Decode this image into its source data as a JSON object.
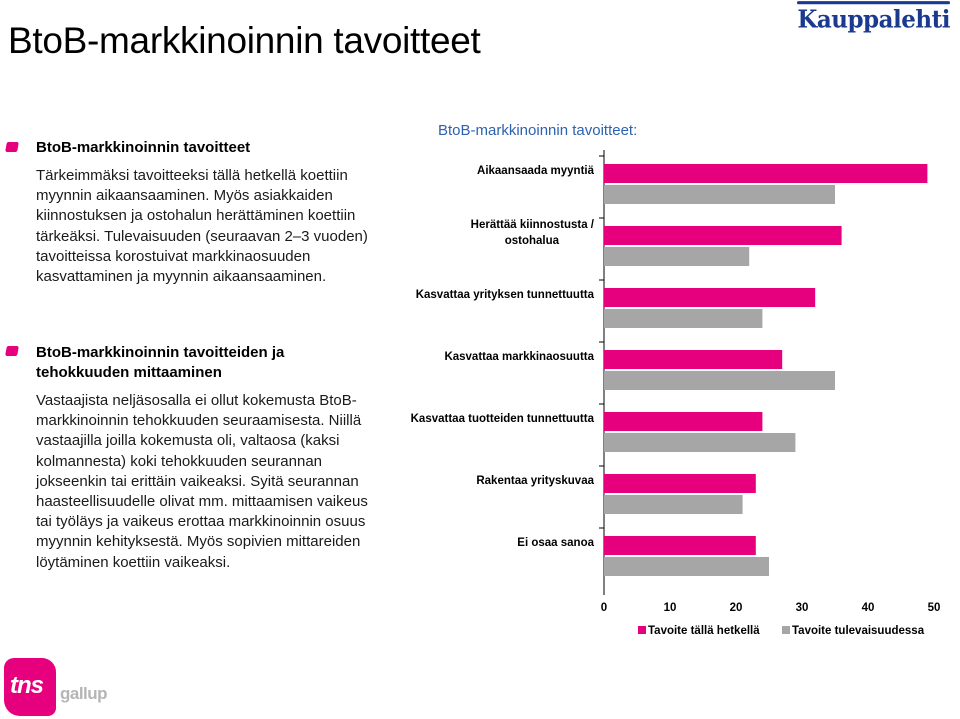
{
  "page": {
    "title": "BtoB-markkinoinnin tavoitteet",
    "brand_logo": "Kauppalehti",
    "footer_logo_main": "tns",
    "footer_logo_sub": "gallup"
  },
  "sections": [
    {
      "heading": "BtoB-markkinoinnin tavoitteet",
      "body": "Tärkeimmäksi tavoitteeksi tällä hetkellä koettiin myynnin aikaansaaminen. Myös asiakkaiden kiinnostuksen ja ostohalun herättäminen koettiin tärkeäksi. Tulevaisuuden (seuraavan 2–3 vuoden) tavoitteissa korostuivat markkinaosuuden kasvattaminen ja myynnin aikaansaaminen."
    },
    {
      "heading": "BtoB-markkinoinnin tavoitteiden ja tehokkuuden mittaaminen",
      "body": "Vastaajista neljäsosalla ei ollut kokemusta BtoB-markkinoinnin tehokkuuden seuraamisesta. Niillä vastaajilla joilla kokemusta oli, valtaosa (kaksi kolmannesta) koki tehokkuuden seurannan jokseenkin tai erittäin vaikeaksi. Syitä seurannan haasteellisuudelle olivat mm. mittaamisen vaikeus tai työläys ja vaikeus erottaa markkinoinnin osuus myynnin kehityksestä. Myös sopivien mittareiden löytäminen koettiin vaikeaksi."
    }
  ],
  "chart_data": {
    "type": "bar",
    "orientation": "horizontal",
    "title": "BtoB-markkinoinnin tavoitteet:",
    "categories": [
      "Aikaansaada myyntiä",
      "Herättää kiinnostusta / ostohalua",
      "Kasvattaa yrityksen tunnettuutta",
      "Kasvattaa markkinaosuutta",
      "Kasvattaa tuotteiden tunnettuutta",
      "Rakentaa yrityskuvaa",
      "Ei osaa sanoa"
    ],
    "series": [
      {
        "name": "Tavoite tällä hetkellä",
        "color": "#e6007e",
        "values": [
          49,
          36,
          32,
          27,
          24,
          23,
          23
        ]
      },
      {
        "name": "Tavoite tulevaisuudessa",
        "color": "#a6a6a6",
        "values": [
          35,
          22,
          24,
          35,
          29,
          21,
          25
        ]
      }
    ],
    "xlim": [
      0,
      50
    ],
    "xticks": [
      0,
      10,
      20,
      30,
      40,
      50
    ],
    "grid": false,
    "legend_position": "bottom"
  }
}
